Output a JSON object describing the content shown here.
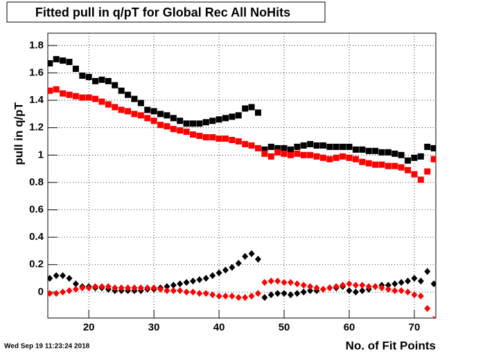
{
  "chart_data": {
    "type": "scatter",
    "title": "Fitted pull in q/pT for Global Rec All NoHits",
    "xlabel": "No. of Fit Points",
    "ylabel": "pull in q/pT",
    "annotation": "Wed Sep 19 11:23:24 2018",
    "x": [
      14,
      15,
      16,
      17,
      18,
      19,
      20,
      21,
      22,
      23,
      24,
      25,
      26,
      27,
      28,
      29,
      30,
      31,
      32,
      33,
      34,
      35,
      36,
      37,
      38,
      39,
      40,
      41,
      42,
      43,
      44,
      45,
      46,
      47,
      48,
      49,
      50,
      51,
      52,
      53,
      54,
      55,
      56,
      57,
      58,
      59,
      60,
      61,
      62,
      63,
      64,
      65,
      66,
      67,
      68,
      69,
      70,
      71,
      72,
      73
    ],
    "series": [
      {
        "color": "#000000",
        "marker": "square",
        "values": [
          1.67,
          1.7,
          1.69,
          1.68,
          1.63,
          1.58,
          1.57,
          1.54,
          1.55,
          1.54,
          1.51,
          1.47,
          1.44,
          1.41,
          1.38,
          1.33,
          1.32,
          1.3,
          1.29,
          1.27,
          1.25,
          1.23,
          1.23,
          1.23,
          1.24,
          1.25,
          1.26,
          1.27,
          1.28,
          1.29,
          1.34,
          1.35,
          1.31,
          1.04,
          1.06,
          1.05,
          1.05,
          1.04,
          1.06,
          1.07,
          1.08,
          1.07,
          1.07,
          1.06,
          1.06,
          1.06,
          1.06,
          1.04,
          1.04,
          1.03,
          1.03,
          1.02,
          1.02,
          1.01,
          1.0,
          0.96,
          0.98,
          0.99,
          1.06,
          1.05
        ]
      },
      {
        "color": "#ff0000",
        "marker": "square",
        "values": [
          1.47,
          1.48,
          1.45,
          1.44,
          1.43,
          1.42,
          1.42,
          1.41,
          1.39,
          1.37,
          1.35,
          1.33,
          1.32,
          1.3,
          1.29,
          1.27,
          1.25,
          1.22,
          1.21,
          1.19,
          1.18,
          1.17,
          1.15,
          1.14,
          1.13,
          1.13,
          1.12,
          1.12,
          1.11,
          1.1,
          1.08,
          1.07,
          1.05,
          1.01,
          0.99,
          1.02,
          1.01,
          1.0,
          1.01,
          1.0,
          1.0,
          0.99,
          0.98,
          0.97,
          0.98,
          0.99,
          0.98,
          0.97,
          0.95,
          0.94,
          0.93,
          0.93,
          0.92,
          0.92,
          0.91,
          0.89,
          0.86,
          0.82,
          0.88,
          0.97
        ]
      },
      {
        "color": "#000000",
        "marker": "diamond",
        "values": [
          0.1,
          0.12,
          0.12,
          0.1,
          0.06,
          0.04,
          0.04,
          0.03,
          0.03,
          0.02,
          0.01,
          0.01,
          0.01,
          0.01,
          0.01,
          0.02,
          0.02,
          0.03,
          0.04,
          0.05,
          0.06,
          0.07,
          0.08,
          0.09,
          0.1,
          0.12,
          0.14,
          0.16,
          0.18,
          0.21,
          0.26,
          0.28,
          0.24,
          -0.04,
          -0.02,
          -0.01,
          -0.01,
          -0.02,
          -0.01,
          0.0,
          0.01,
          0.01,
          0.02,
          0.03,
          0.03,
          0.04,
          0.01,
          0.0,
          0.01,
          0.02,
          0.04,
          0.05,
          0.05,
          0.06,
          0.07,
          0.08,
          0.1,
          0.08,
          0.15,
          0.06
        ]
      },
      {
        "color": "#ff0000",
        "marker": "diamond",
        "values": [
          -0.01,
          -0.01,
          0.0,
          0.01,
          0.02,
          0.03,
          0.03,
          0.04,
          0.04,
          0.04,
          0.03,
          0.03,
          0.03,
          0.03,
          0.03,
          0.03,
          0.03,
          0.02,
          0.01,
          0.01,
          0.01,
          0.0,
          0.0,
          -0.01,
          -0.01,
          -0.02,
          -0.03,
          -0.03,
          -0.03,
          -0.04,
          -0.04,
          -0.03,
          -0.01,
          0.07,
          0.08,
          0.08,
          0.07,
          0.07,
          0.06,
          0.05,
          0.04,
          0.03,
          0.02,
          0.03,
          0.04,
          0.05,
          0.06,
          0.05,
          0.05,
          0.04,
          0.04,
          0.03,
          0.02,
          0.01,
          0.01,
          0.0,
          -0.02,
          -0.03,
          -0.12,
          -0.2
        ]
      }
    ],
    "xlim": [
      13.7,
      73.3
    ],
    "xticks": [
      20,
      30,
      40,
      50,
      60,
      70
    ],
    "ylim": [
      -0.19,
      1.89
    ],
    "yticks": [
      0,
      0.2,
      0.4,
      0.6,
      0.8,
      1,
      1.2,
      1.4,
      1.6,
      1.8
    ],
    "grid": true
  }
}
